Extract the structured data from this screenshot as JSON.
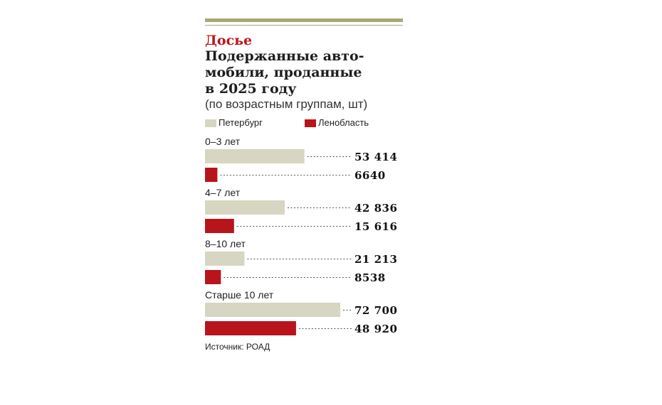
{
  "header": {
    "kicker": "Досье",
    "title": "Подержанные авто-\nмобили, проданные\nв 2025 году",
    "subtitle": "(по возрастным группам, шт)"
  },
  "legend": [
    {
      "label": "Петербург",
      "color": "#d6d6c2"
    },
    {
      "label": "Ленобласть",
      "color": "#b8141c"
    }
  ],
  "chart_data": {
    "type": "bar",
    "orientation": "horizontal",
    "categories": [
      "0–3 лет",
      "4–7 лет",
      "8–10 лет",
      "Старше 10 лет"
    ],
    "series": [
      {
        "name": "Петербург",
        "color": "#d6d6c2",
        "values": [
          53414,
          42836,
          21213,
          72700
        ],
        "labels": [
          "53 414",
          "42 836",
          "21 213",
          "72 700"
        ]
      },
      {
        "name": "Ленобласть",
        "color": "#b8141c",
        "values": [
          6640,
          15616,
          8538,
          48920
        ],
        "labels": [
          "6640",
          "15 616",
          "8538",
          "48 920"
        ]
      }
    ],
    "xlim": [
      0,
      72700
    ],
    "grid": false,
    "legend_position": "top-left"
  },
  "footer": {
    "source": "Источник: РОАД"
  }
}
